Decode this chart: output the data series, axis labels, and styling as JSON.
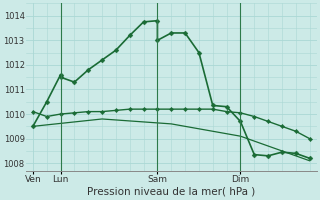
{
  "bg_color": "#cceae7",
  "grid_color": "#aad8d4",
  "line_color": "#1a6b35",
  "marker_color": "#1a6b35",
  "title": "Pression niveau de la mer( hPa )",
  "ylabel_ticks": [
    1008,
    1009,
    1010,
    1011,
    1012,
    1013,
    1014
  ],
  "ylim": [
    1007.7,
    1014.5
  ],
  "xtick_labels": [
    "Ven",
    "Lun",
    "Sam",
    "Dim"
  ],
  "xtick_positions": [
    0,
    2,
    9,
    15
  ],
  "series1_x": [
    0,
    1,
    2,
    2,
    3,
    4,
    5,
    6,
    7,
    8,
    9,
    9,
    10,
    11,
    12,
    13,
    14,
    15,
    16,
    17,
    18,
    19,
    20
  ],
  "series1_y": [
    1009.5,
    1010.5,
    1011.6,
    1011.5,
    1011.3,
    1011.8,
    1012.2,
    1012.6,
    1013.2,
    1013.75,
    1013.8,
    1013.0,
    1013.3,
    1013.3,
    1012.5,
    1010.35,
    1010.3,
    1009.7,
    1008.35,
    1008.3,
    1008.45,
    1008.4,
    1008.2
  ],
  "series2_x": [
    0,
    1,
    2,
    3,
    4,
    5,
    6,
    7,
    8,
    9,
    10,
    11,
    12,
    13,
    14,
    15,
    16,
    17,
    18,
    19,
    20
  ],
  "series2_y": [
    1010.1,
    1009.9,
    1010.0,
    1010.05,
    1010.1,
    1010.1,
    1010.15,
    1010.2,
    1010.2,
    1010.2,
    1010.2,
    1010.2,
    1010.2,
    1010.2,
    1010.1,
    1010.05,
    1009.9,
    1009.7,
    1009.5,
    1009.3,
    1009.0
  ],
  "series3_x": [
    0,
    5,
    10,
    15,
    20
  ],
  "series3_y": [
    1009.5,
    1009.8,
    1009.6,
    1009.1,
    1008.1
  ],
  "xlim": [
    -0.5,
    20.5
  ],
  "vline_positions": [
    2,
    9,
    15
  ],
  "n_points": 21,
  "grid_minor": true
}
